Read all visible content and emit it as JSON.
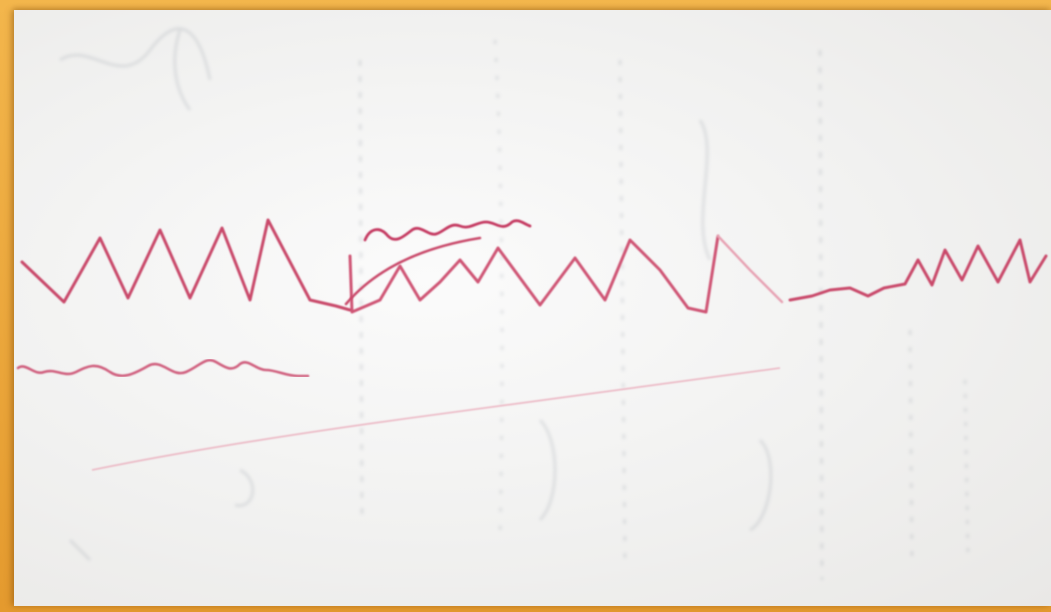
{
  "photo": {
    "subject": "",
    "colors": {
      "frame": "#e9a236",
      "paper": "#f3f3f2",
      "ink_dark": "#c53a62",
      "ink_light": "#e89aaa",
      "bleed_through": "#9aa0a8"
    }
  }
}
